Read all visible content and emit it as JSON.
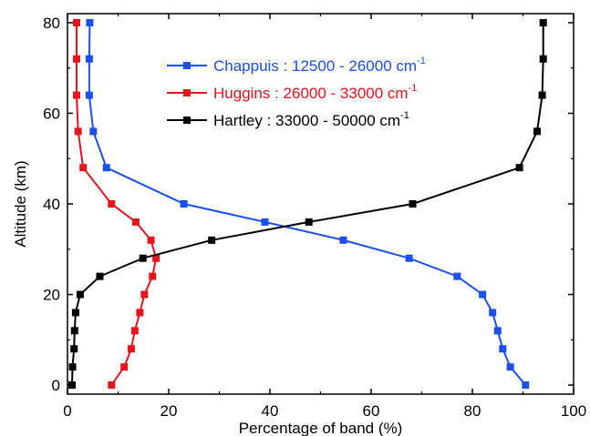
{
  "chart_data": {
    "type": "line",
    "xlabel": "Percentage of band (%)",
    "ylabel": "Altitude  (km)",
    "xlim": [
      0,
      100
    ],
    "ylim": [
      -2,
      82
    ],
    "xticks": [
      0,
      20,
      40,
      60,
      80,
      100
    ],
    "yticks": [
      0,
      20,
      40,
      60,
      80
    ],
    "grid": false,
    "legend_position": "top-center",
    "series": [
      {
        "name": "Chappuis : 12500 - 26000 cm",
        "name_sup": "-1",
        "color": "#1a4ff0",
        "x": [
          4.4,
          4.3,
          4.3,
          5.1,
          7.7,
          23,
          39,
          54.5,
          67.5,
          77,
          82,
          84,
          85,
          86,
          87.5,
          90.5
        ],
        "y": [
          80,
          72,
          64,
          56,
          48,
          40,
          36,
          32,
          28,
          24,
          20,
          16,
          12,
          8,
          4,
          0
        ]
      },
      {
        "name": "Huggins  : 26000 - 33000 cm",
        "name_sup": "-1",
        "color": "#e8141b",
        "x": [
          1.8,
          1.8,
          1.8,
          2.1,
          3.1,
          8.7,
          13.5,
          16.5,
          17.5,
          16.8,
          15.2,
          14.3,
          13.3,
          12.6,
          11.2,
          8.7
        ],
        "y": [
          80,
          72,
          64,
          56,
          48,
          40,
          36,
          32,
          28,
          24,
          20,
          16,
          12,
          8,
          4,
          0
        ]
      },
      {
        "name": "Hartley  : 33000 - 50000 cm",
        "name_sup": "-1",
        "color": "#000000",
        "x": [
          94,
          94,
          93.8,
          92.8,
          89.3,
          68.2,
          47.7,
          28.5,
          14.9,
          6.4,
          2.5,
          1.6,
          1.4,
          1.3,
          1.0,
          0.9
        ],
        "y": [
          80,
          72,
          64,
          56,
          48,
          40,
          36,
          32,
          28,
          24,
          20,
          16,
          12,
          8,
          4,
          0
        ]
      }
    ]
  }
}
